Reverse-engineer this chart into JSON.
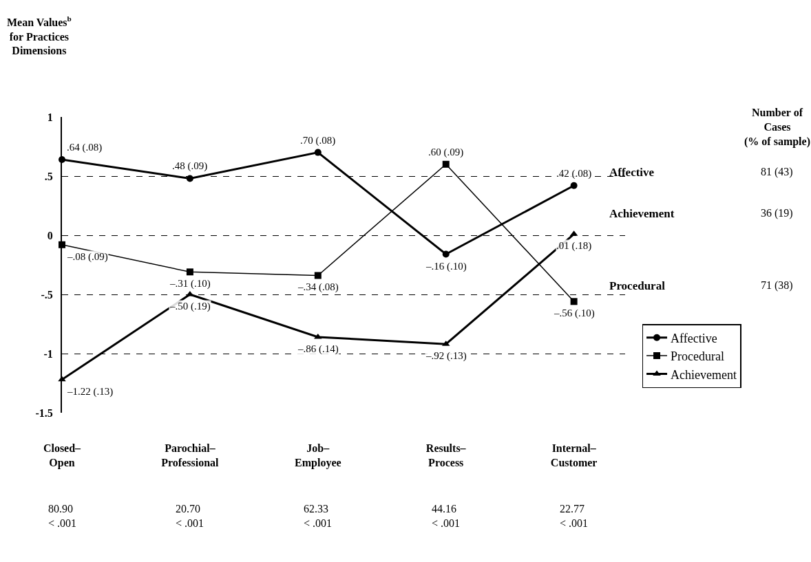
{
  "chart_data": {
    "type": "line",
    "ylabel": "Mean Values$^{b}$\nfor Practices\nDimensions",
    "categories": [
      "Closed–\nOpen",
      "Parochial–\nProfessional",
      "Job–\nEmployee",
      "Results–\nProcess",
      "Internal–\nCustomer"
    ],
    "series": [
      {
        "name": "Affective",
        "color": "#000000",
        "marker": "circle",
        "values": [
          0.64,
          0.48,
          0.7,
          -0.16,
          0.42
        ],
        "value_labels": [
          ".64 (.08)",
          ".48 (.09)",
          ".70 (.08)",
          "–.16 (.10)",
          ".42 (.08)"
        ]
      },
      {
        "name": "Procedural",
        "color": "#000000",
        "marker": "square",
        "values": [
          -0.08,
          -0.31,
          -0.34,
          0.6,
          -0.56
        ],
        "value_labels": [
          "–.08 (.09)",
          "–.31 (.10)",
          "–.34 (.08)",
          ".60 (.09)",
          "–.56 (.10)"
        ]
      },
      {
        "name": "Achievement",
        "color": "#000000",
        "marker": "triangle",
        "values": [
          -1.22,
          -0.5,
          -0.86,
          -0.92,
          0.01
        ],
        "value_labels": [
          "–1.22 (.13)",
          "–.50 (.19)",
          "–.86 (.14)",
          "–.92 (.13)",
          ".01 (.18)"
        ]
      }
    ],
    "ylim": [
      -1.5,
      1
    ],
    "yticks": [
      {
        "value": 1,
        "label": "1"
      },
      {
        "value": 0.5,
        "label": ".5"
      },
      {
        "value": 0,
        "label": "0"
      },
      {
        "value": -0.5,
        "label": "-.5"
      },
      {
        "value": -1,
        "label": "-1"
      },
      {
        "value": -1.5,
        "label": "-1.5"
      }
    ],
    "grid": "y",
    "line_style": "solid",
    "legend": "bottom right",
    "annotations": [
      "Number of\nCases\n(% of sample)",
      "Affective",
      "81 (43)",
      "Achievement",
      "36 (19)",
      "Procedural",
      "71 (38)",
      "80.90\n< .001",
      "20.70\n< .001",
      "62.33\n< .001",
      "44.16\n< .001",
      "22.77\n< .001"
    ]
  }
}
